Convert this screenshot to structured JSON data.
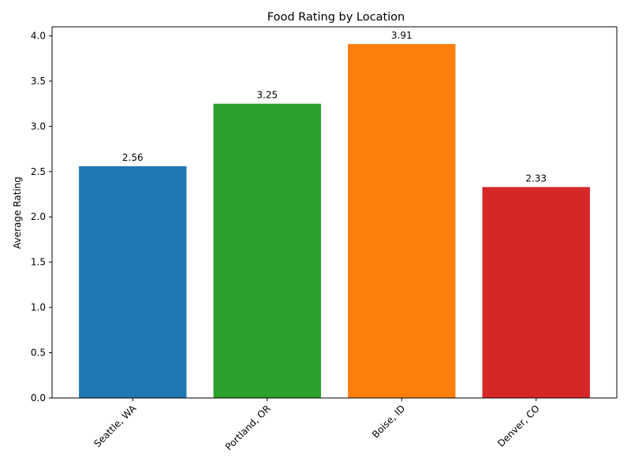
{
  "chart_data": {
    "type": "bar",
    "title": "Food Rating by Location",
    "xlabel": "",
    "ylabel": "Average Rating",
    "categories": [
      "Seattle, WA",
      "Portland, OR",
      "Boise, ID",
      "Denver, CO"
    ],
    "values": [
      2.56,
      3.25,
      3.91,
      2.33
    ],
    "value_labels": [
      "2.56",
      "3.25",
      "3.91",
      "2.33"
    ],
    "colors": [
      "#1f77b4",
      "#2ca02c",
      "#ff7f0e",
      "#d62728"
    ],
    "ylim": [
      0,
      4.1
    ],
    "yticks": [
      0.0,
      0.5,
      1.0,
      1.5,
      2.0,
      2.5,
      3.0,
      3.5,
      4.0
    ],
    "ytick_labels": [
      "0.0",
      "0.5",
      "1.0",
      "1.5",
      "2.0",
      "2.5",
      "3.0",
      "3.5",
      "4.0"
    ],
    "x_tick_rotation_deg": 45,
    "grid": false,
    "legend": "none"
  }
}
